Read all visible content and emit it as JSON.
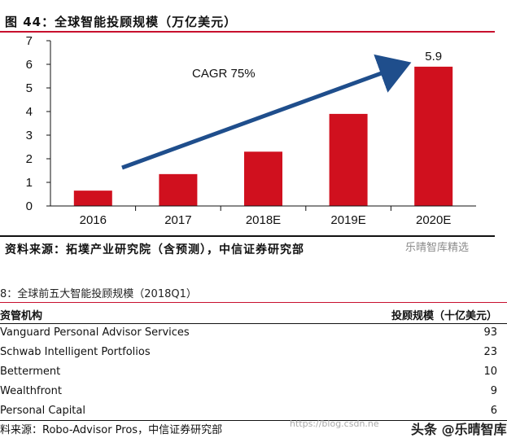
{
  "figure": {
    "title": "图 44：全球智能投顾规模（万亿美元）",
    "source": "资料来源：拓墣产业研究院（含预测），中信证券研究部"
  },
  "chart_data": {
    "type": "bar",
    "categories": [
      "2016",
      "2017",
      "2018E",
      "2019E",
      "2020E"
    ],
    "values": [
      0.65,
      1.35,
      2.3,
      3.9,
      5.9
    ],
    "ylim": [
      0,
      7
    ],
    "yticks": [
      "0",
      "1",
      "2",
      "3",
      "4",
      "5",
      "6",
      "7"
    ],
    "data_labels": [
      "",
      "",
      "",
      "",
      "5.9"
    ],
    "annotation": "CAGR 75%",
    "bar_color": "#d0101e",
    "arrow_color": "#1f4e8c",
    "grid": false
  },
  "table": {
    "title": "8：全球前五大智能投顾规模（2018Q1）",
    "headers": [
      "资管机构",
      "投顾规模（十亿美元）"
    ],
    "rows": [
      [
        "Vanguard Personal Advisor Services",
        "93"
      ],
      [
        "Schwab Intelligent Portfolios",
        "23"
      ],
      [
        "Betterment",
        "10"
      ],
      [
        "Wealthfront",
        "9"
      ],
      [
        "Personal Capital",
        "6"
      ]
    ],
    "source": "料来源：Robo-Advisor Pros，中信证券研究部"
  },
  "watermarks": {
    "wechat_top": "乐晴智库精选",
    "url": "https://blog.csdn.ne",
    "toutiao": "头条 @乐晴智库"
  }
}
